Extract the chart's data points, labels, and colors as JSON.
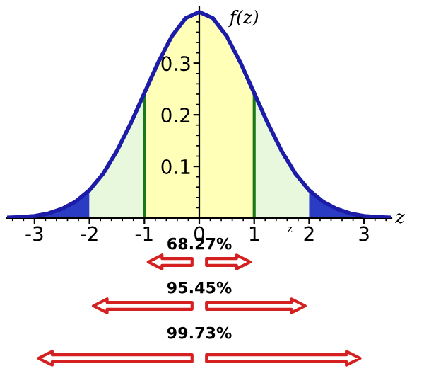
{
  "chart_data": {
    "type": "line",
    "xlabel": "z",
    "ylabel": "f(z)",
    "series": [
      {
        "type": "area",
        "color": "#2b3cc4",
        "x": [
          -3.5,
          -3.25,
          -3,
          -2.75,
          -2.5,
          -2.25,
          -2
        ],
        "values": [
          0.001,
          0.002,
          0.004,
          0.009,
          0.018,
          0.032,
          0.054
        ]
      },
      {
        "type": "area",
        "color": "#e8f8dc",
        "x": [
          -2,
          -1.75,
          -1.5,
          -1.25,
          -1
        ],
        "values": [
          0.054,
          0.086,
          0.13,
          0.183,
          0.242
        ]
      },
      {
        "type": "area",
        "color": "#ffffb8",
        "x": [
          -1,
          -0.75,
          -0.5,
          -0.25,
          0,
          0.25,
          0.5,
          0.75,
          1
        ],
        "values": [
          0.242,
          0.301,
          0.352,
          0.387,
          0.399,
          0.387,
          0.352,
          0.301,
          0.242
        ]
      },
      {
        "type": "area",
        "color": "#e8f8dc",
        "x": [
          1,
          1.25,
          1.5,
          1.75,
          2
        ],
        "values": [
          0.242,
          0.183,
          0.13,
          0.086,
          0.054
        ]
      },
      {
        "type": "area",
        "color": "#2b3cc4",
        "x": [
          2,
          2.25,
          2.5,
          2.75,
          3,
          3.25,
          3.5
        ],
        "values": [
          0.054,
          0.032,
          0.018,
          0.009,
          0.004,
          0.002,
          0.001
        ]
      },
      {
        "color": "#1c1ca8",
        "x": [
          -3.5,
          -3.25,
          -3,
          -2.75,
          -2.5,
          -2.25,
          -2,
          -1.75,
          -1.5,
          -1.25,
          -1,
          -0.75,
          -0.5,
          -0.25,
          0,
          0.25,
          0.5,
          0.75,
          1,
          1.25,
          1.5,
          1.75,
          2,
          2.25,
          2.5,
          2.75,
          3,
          3.25,
          3.5
        ],
        "values": [
          0.001,
          0.002,
          0.004,
          0.009,
          0.018,
          0.032,
          0.054,
          0.086,
          0.13,
          0.183,
          0.242,
          0.301,
          0.352,
          0.387,
          0.399,
          0.387,
          0.352,
          0.301,
          0.242,
          0.183,
          0.13,
          0.086,
          0.054,
          0.032,
          0.018,
          0.009,
          0.004,
          0.002,
          0.001
        ]
      }
    ],
    "xlim": [
      -3.5,
      3.5
    ],
    "ylim": [
      0,
      0.41
    ],
    "xticks": [
      -3,
      -2,
      -1,
      0,
      1,
      2,
      3
    ],
    "yticks": [
      0.1,
      0.2,
      0.3
    ],
    "ref_lines": [
      {
        "axis": "x",
        "value": -1,
        "color": "#1a7a1a"
      },
      {
        "axis": "x",
        "value": 1,
        "color": "#1a7a1a"
      }
    ],
    "annotations": [
      "z",
      "68.27%",
      "95.45%",
      "99.73%"
    ],
    "legend": false,
    "grid": false
  }
}
